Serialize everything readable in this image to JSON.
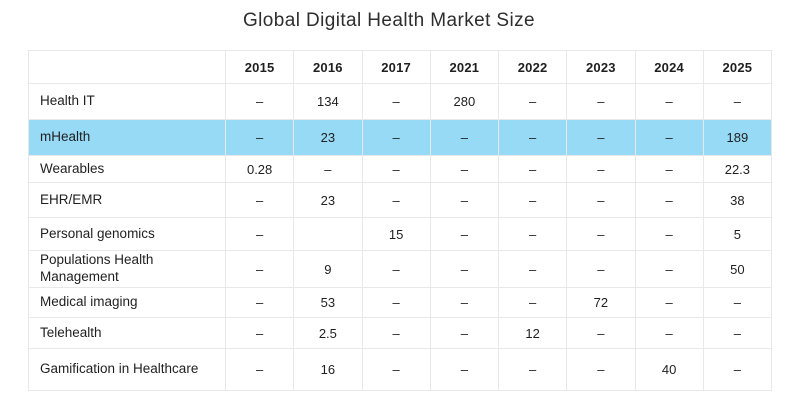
{
  "title": "Global Digital Health Market Size",
  "colors": {
    "highlight_row": "#97daf6",
    "grid_line": "#e8e8e8",
    "text": "#1f1f1f",
    "background": "#ffffff"
  },
  "table": {
    "corner_label": "",
    "columns": [
      "2015",
      "2016",
      "2017",
      "2021",
      "2022",
      "2023",
      "2024",
      "2025"
    ],
    "empty_marker": "–",
    "rows": [
      {
        "label": "Health IT",
        "highlight": false,
        "values": [
          "–",
          "134",
          "–",
          "280",
          "–",
          "–",
          "–",
          "–"
        ]
      },
      {
        "label": "mHealth",
        "highlight": true,
        "values": [
          "–",
          "23",
          "–",
          "–",
          "–",
          "–",
          "–",
          "189"
        ]
      },
      {
        "label": "Wearables",
        "highlight": false,
        "values": [
          "0.28",
          "–",
          "–",
          "–",
          "–",
          "–",
          "–",
          "22.3"
        ]
      },
      {
        "label": "EHR/EMR",
        "highlight": false,
        "values": [
          "–",
          "23",
          "–",
          "–",
          "–",
          "–",
          "–",
          "38"
        ]
      },
      {
        "label": "Personal genomics",
        "highlight": false,
        "values": [
          "–",
          "",
          "15",
          "–",
          "–",
          "–",
          "–",
          "5"
        ]
      },
      {
        "label": "Populations Health Management",
        "highlight": false,
        "values": [
          "–",
          "9",
          "–",
          "–",
          "–",
          "–",
          "–",
          "50"
        ]
      },
      {
        "label": "Medical imaging",
        "highlight": false,
        "values": [
          "–",
          "53",
          "–",
          "–",
          "–",
          "72",
          "–",
          "–"
        ]
      },
      {
        "label": "Telehealth",
        "highlight": false,
        "values": [
          "–",
          "2.5",
          "–",
          "–",
          "12",
          "–",
          "–",
          "–"
        ]
      },
      {
        "label": "Gamification in Healthcare",
        "highlight": false,
        "values": [
          "–",
          "16",
          "–",
          "–",
          "–",
          "–",
          "40",
          "–"
        ]
      }
    ]
  },
  "chart_data": {
    "type": "table",
    "title": "Global Digital Health Market Size",
    "categories": [
      "2015",
      "2016",
      "2017",
      "2021",
      "2022",
      "2023",
      "2024",
      "2025"
    ],
    "series": [
      {
        "name": "Health IT",
        "values": [
          null,
          134,
          null,
          280,
          null,
          null,
          null,
          null
        ]
      },
      {
        "name": "mHealth",
        "values": [
          null,
          23,
          null,
          null,
          null,
          null,
          null,
          189
        ]
      },
      {
        "name": "Wearables",
        "values": [
          0.28,
          null,
          null,
          null,
          null,
          null,
          null,
          22.3
        ]
      },
      {
        "name": "EHR/EMR",
        "values": [
          null,
          23,
          null,
          null,
          null,
          null,
          null,
          38
        ]
      },
      {
        "name": "Personal genomics",
        "values": [
          null,
          null,
          15,
          null,
          null,
          null,
          null,
          5
        ]
      },
      {
        "name": "Populations Health Management",
        "values": [
          null,
          9,
          null,
          null,
          null,
          null,
          null,
          50
        ]
      },
      {
        "name": "Medical imaging",
        "values": [
          null,
          53,
          null,
          null,
          null,
          72,
          null,
          null
        ]
      },
      {
        "name": "Telehealth",
        "values": [
          null,
          2.5,
          null,
          null,
          12,
          null,
          null,
          null
        ]
      },
      {
        "name": "Gamification in Healthcare",
        "values": [
          null,
          16,
          null,
          null,
          null,
          null,
          40,
          null
        ]
      }
    ],
    "highlighted_row": "mHealth",
    "legend_position": "none",
    "grid": true
  }
}
